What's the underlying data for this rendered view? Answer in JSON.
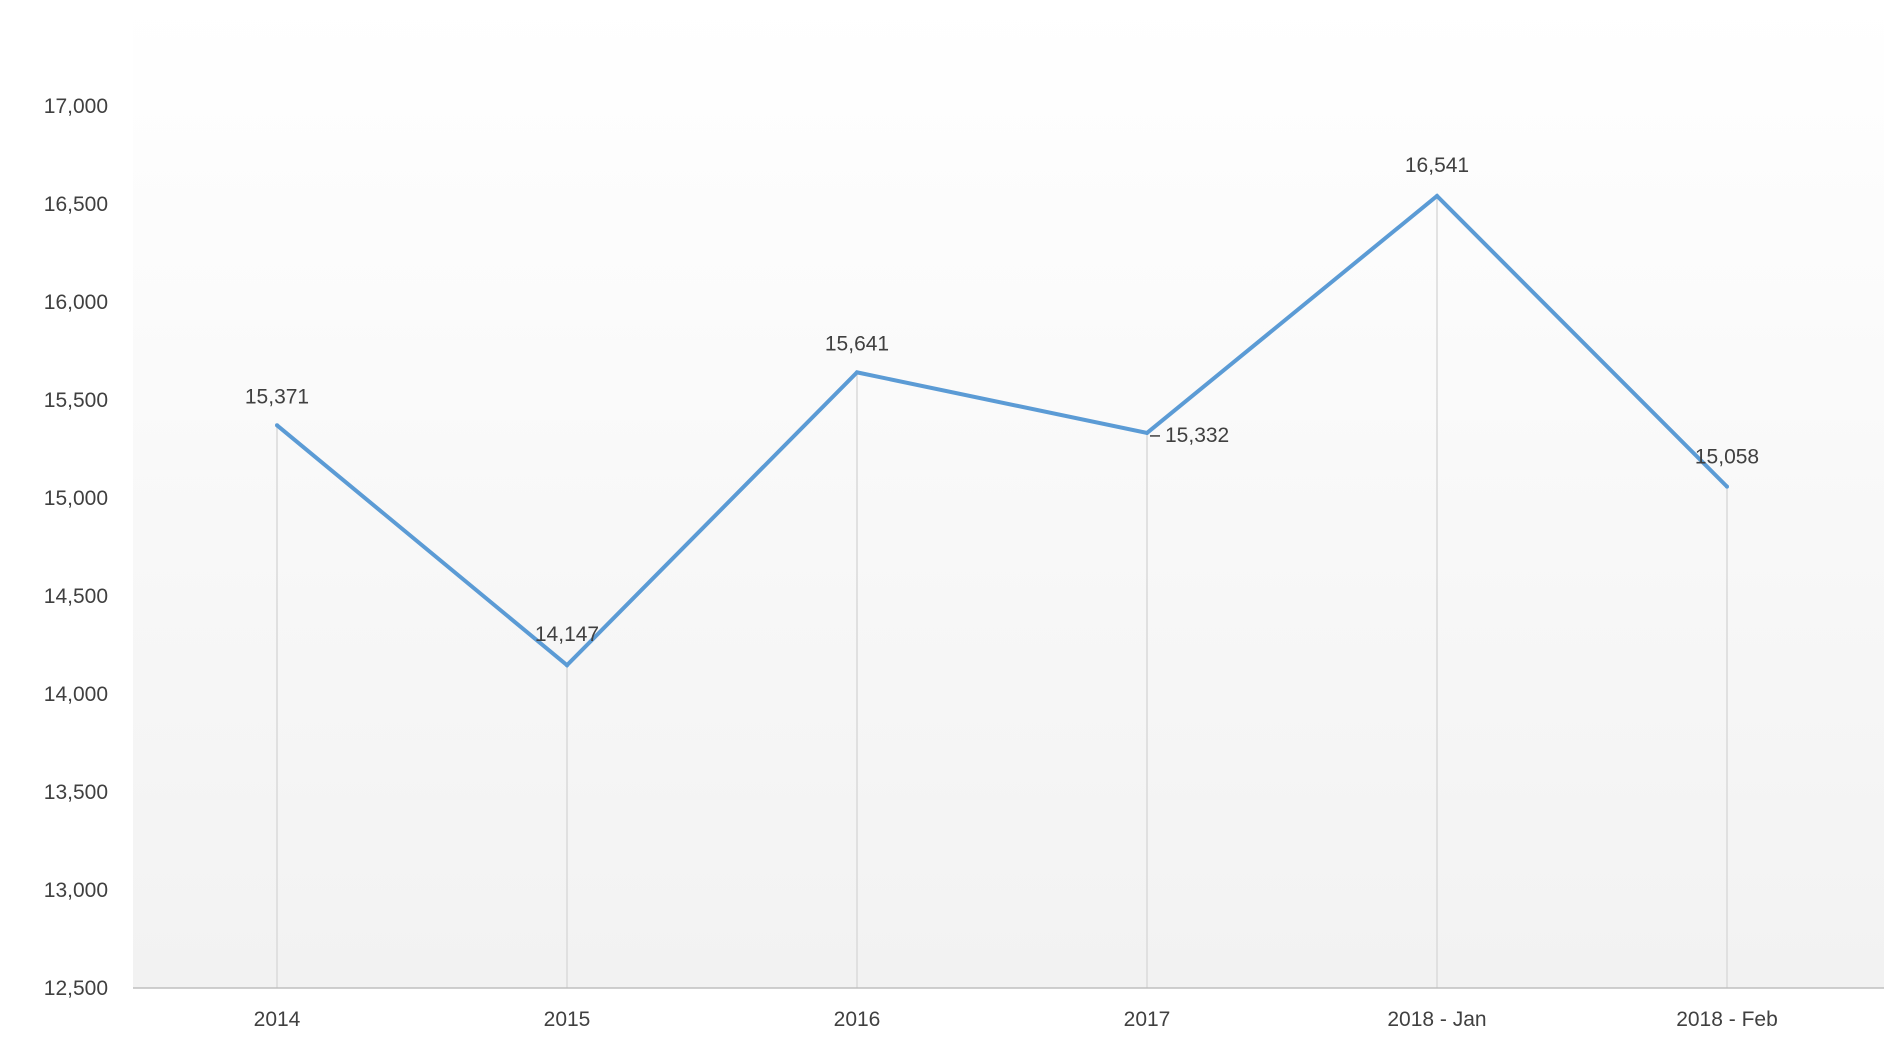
{
  "chart_data": {
    "type": "line",
    "title": "",
    "xlabel": "",
    "ylabel": "",
    "categories": [
      "2014",
      "2015",
      "2016",
      "2017",
      "2018 - Jan",
      "2018 - Feb"
    ],
    "series": [
      {
        "values": [
          15371,
          14147,
          15641,
          15332,
          16541,
          15058
        ],
        "data_labels": [
          "15,371",
          "14,147",
          "15,641",
          "15,332",
          "16,541",
          "15,058"
        ],
        "color": "#5b9bd5"
      }
    ],
    "ylim": [
      12500,
      17000
    ],
    "y_ticks": [
      12500,
      13000,
      13500,
      14000,
      14500,
      15000,
      15500,
      16000,
      16500,
      17000
    ],
    "y_tick_labels": [
      "12,500",
      "13,000",
      "13,500",
      "14,000",
      "14,500",
      "15,000",
      "15,500",
      "16,000",
      "16,500",
      "17,000"
    ],
    "grid": false,
    "drop_lines": true,
    "legend": "none",
    "colors": {
      "line": "#5b9bd5",
      "drop_line": "#d9d9d9",
      "axis": "#bfbfbf",
      "text": "#404040",
      "plot_bg_top": "#ffffff",
      "plot_bg_bottom": "#f2f2f2"
    }
  }
}
